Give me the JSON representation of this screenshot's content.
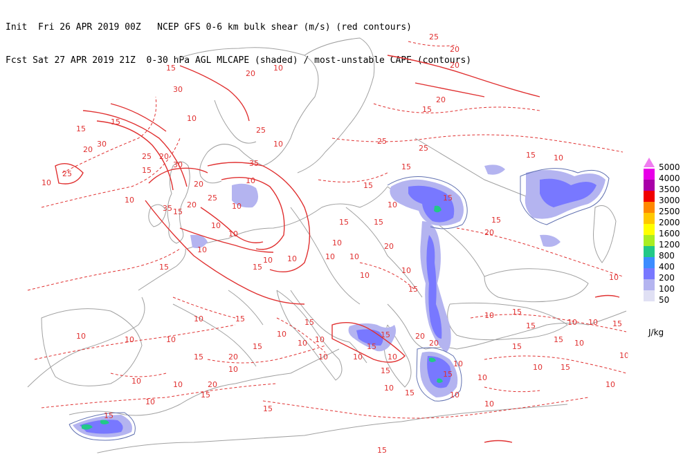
{
  "header": {
    "line1_left": "Init  Fri 26 APR 2019 00Z",
    "line1_right": "NCEP GFS 0-6 km bulk shear (m/s) (red contours)",
    "line2_left": "Fcst Sat 27 APR 2019 21Z",
    "line2_right": "0-30 hPa AGL MLCAPE (shaded) / most-unstable CAPE (contours)"
  },
  "legend": {
    "unit": "J/kg",
    "items": [
      {
        "label": "5000",
        "color": "#f07cf0",
        "top_arrow": true
      },
      {
        "label": "4000",
        "color": "#e800e8"
      },
      {
        "label": "3500",
        "color": "#a800a8"
      },
      {
        "label": "3000",
        "color": "#f00000"
      },
      {
        "label": "2500",
        "color": "#ff8800"
      },
      {
        "label": "2000",
        "color": "#ffc800"
      },
      {
        "label": "1600",
        "color": "#ffff00"
      },
      {
        "label": "1200",
        "color": "#aaee22"
      },
      {
        "label": "800",
        "color": "#22c888"
      },
      {
        "label": "400",
        "color": "#3c8cff"
      },
      {
        "label": "200",
        "color": "#7878ff"
      },
      {
        "label": "100",
        "color": "#b4b4f0"
      },
      {
        "label": "50",
        "color": "#e0e0f4"
      }
    ]
  },
  "map": {
    "shear_labels": [
      "25",
      "20",
      "10",
      "20",
      "15",
      "20",
      "30",
      "20",
      "15",
      "10",
      "15",
      "25",
      "30",
      "25",
      "20",
      "25",
      "15",
      "30",
      "35",
      "25",
      "25",
      "20",
      "10",
      "15",
      "35",
      "20",
      "25",
      "10",
      "10",
      "10",
      "10",
      "15",
      "20",
      "20",
      "15",
      "15",
      "15",
      "10",
      "10",
      "15",
      "15",
      "10",
      "10",
      "10",
      "15",
      "10",
      "15",
      "10",
      "10",
      "15",
      "15",
      "20",
      "20",
      "10",
      "10",
      "10",
      "15",
      "10",
      "15",
      "15",
      "10",
      "10",
      "10",
      "15",
      "15",
      "15",
      "15",
      "10",
      "10",
      "10",
      "15",
      "10",
      "10",
      "15",
      "10",
      "10",
      "10",
      "10",
      "10",
      "15",
      "10",
      "15",
      "15",
      "10",
      "10",
      "10",
      "15",
      "10",
      "20",
      "15",
      "20",
      "10",
      "10",
      "15",
      "10",
      "15",
      "10",
      "15",
      "10",
      "10",
      "10",
      "15",
      "15",
      "10",
      "10",
      "20",
      "15"
    ],
    "colors": {
      "shear": "#e03030",
      "coast": "#a0a0a0",
      "cape_contour": "#6070b0"
    }
  }
}
